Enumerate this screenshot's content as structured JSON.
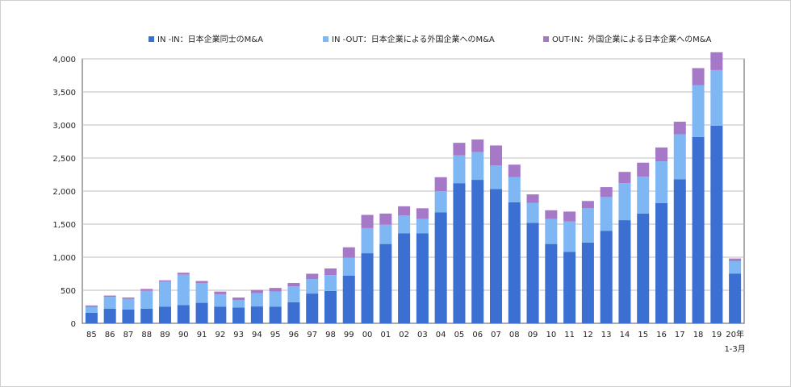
{
  "colors": {
    "in_in": "#3b6fd1",
    "in_out": "#7eb7f4",
    "out_in": "#a678c8",
    "grid": "#bdbdbd",
    "axis": "#555555"
  },
  "chart_data": {
    "type": "bar",
    "stacked": true,
    "title": "",
    "xlabel": "",
    "ylabel": "",
    "ylim": [
      0,
      4000
    ],
    "yticks": [
      "0",
      "500",
      "1,000",
      "1,500",
      "2,000",
      "2,500",
      "3,000",
      "3,500",
      "4,000"
    ],
    "ytick_values": [
      0,
      500,
      1000,
      1500,
      2000,
      2500,
      3000,
      3500,
      4000
    ],
    "categories": [
      "85",
      "86",
      "87",
      "88",
      "89",
      "90",
      "91",
      "92",
      "93",
      "94",
      "95",
      "96",
      "97",
      "98",
      "99",
      "00",
      "01",
      "02",
      "03",
      "04",
      "05",
      "06",
      "07",
      "08",
      "09",
      "10",
      "11",
      "12",
      "13",
      "14",
      "15",
      "16",
      "17",
      "18",
      "19",
      "20年"
    ],
    "last_category_sub": "1-3月",
    "series": [
      {
        "name": "IN -IN：日本企業同士のM&A",
        "values": [
          160,
          220,
          210,
          220,
          250,
          275,
          310,
          250,
          240,
          255,
          250,
          320,
          450,
          490,
          720,
          1060,
          1200,
          1360,
          1360,
          1680,
          2120,
          2170,
          2030,
          1830,
          1520,
          1200,
          1080,
          1220,
          1400,
          1560,
          1660,
          1820,
          2180,
          2820,
          2990,
          750
        ]
      },
      {
        "name": "IN -OUT：日本企業による外国企業へのM&A",
        "values": [
          90,
          180,
          160,
          270,
          380,
          460,
          300,
          190,
          110,
          200,
          230,
          240,
          220,
          240,
          270,
          380,
          290,
          270,
          220,
          320,
          420,
          420,
          360,
          380,
          300,
          380,
          460,
          520,
          510,
          560,
          560,
          630,
          680,
          780,
          840,
          190
        ]
      },
      {
        "name": "OUT-IN：外国企業による日本企業へのM&A",
        "values": [
          20,
          20,
          20,
          30,
          20,
          30,
          30,
          40,
          40,
          50,
          55,
          50,
          80,
          100,
          160,
          200,
          170,
          140,
          160,
          210,
          190,
          190,
          300,
          190,
          130,
          130,
          150,
          110,
          150,
          170,
          210,
          210,
          190,
          260,
          270,
          40
        ]
      }
    ],
    "legend_position": "top"
  }
}
